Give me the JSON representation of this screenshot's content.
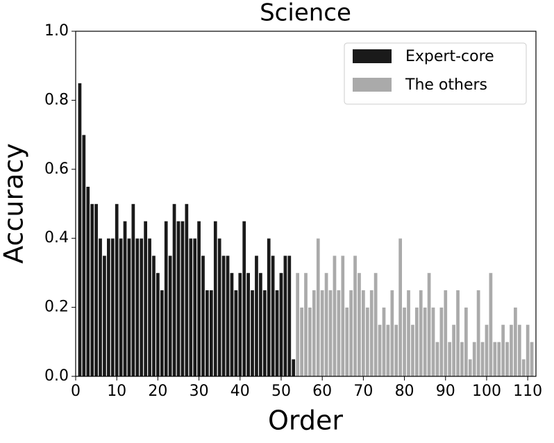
{
  "chart_data": {
    "type": "bar",
    "title": "Science",
    "x_label": "Order",
    "y_label": "Accuracy",
    "series": [
      {
        "name": "Expert-core",
        "color": "#1a1a1a",
        "x": [
          1,
          2,
          3,
          4,
          5,
          6,
          7,
          8,
          9,
          10,
          11,
          12,
          13,
          14,
          15,
          16,
          17,
          18,
          19,
          20,
          21,
          22,
          23,
          24,
          25,
          26,
          27,
          28,
          29,
          30,
          31,
          32,
          33,
          34,
          35,
          36,
          37,
          38,
          39,
          40,
          41,
          42,
          43,
          44,
          45,
          46,
          47,
          48,
          49,
          50,
          51,
          52,
          53
        ],
        "values": [
          0.85,
          0.7,
          0.55,
          0.5,
          0.5,
          0.4,
          0.35,
          0.4,
          0.4,
          0.5,
          0.4,
          0.45,
          0.4,
          0.5,
          0.4,
          0.4,
          0.45,
          0.4,
          0.35,
          0.3,
          0.25,
          0.45,
          0.35,
          0.5,
          0.45,
          0.45,
          0.5,
          0.4,
          0.4,
          0.45,
          0.35,
          0.25,
          0.25,
          0.45,
          0.4,
          0.35,
          0.35,
          0.3,
          0.25,
          0.3,
          0.45,
          0.3,
          0.25,
          0.35,
          0.3,
          0.25,
          0.4,
          0.35,
          0.25,
          0.3,
          0.35,
          0.35,
          0.05
        ]
      },
      {
        "name": "The others",
        "color": "#aaaaaa",
        "x": [
          54,
          55,
          56,
          57,
          58,
          59,
          60,
          61,
          62,
          63,
          64,
          65,
          66,
          67,
          68,
          69,
          70,
          71,
          72,
          73,
          74,
          75,
          76,
          77,
          78,
          79,
          80,
          81,
          82,
          83,
          84,
          85,
          86,
          87,
          88,
          89,
          90,
          91,
          92,
          93,
          94,
          95,
          96,
          97,
          98,
          99,
          100,
          101,
          102,
          103,
          104,
          105,
          106,
          107,
          108,
          109,
          110,
          111
        ],
        "values": [
          0.3,
          0.2,
          0.3,
          0.2,
          0.25,
          0.4,
          0.25,
          0.3,
          0.25,
          0.35,
          0.25,
          0.35,
          0.2,
          0.25,
          0.35,
          0.3,
          0.25,
          0.2,
          0.25,
          0.3,
          0.15,
          0.2,
          0.15,
          0.25,
          0.15,
          0.4,
          0.2,
          0.25,
          0.15,
          0.2,
          0.25,
          0.2,
          0.3,
          0.2,
          0.1,
          0.2,
          0.25,
          0.1,
          0.15,
          0.25,
          0.1,
          0.2,
          0.05,
          0.1,
          0.25,
          0.1,
          0.15,
          0.3,
          0.1,
          0.1,
          0.15,
          0.1,
          0.15,
          0.2,
          0.15,
          0.05,
          0.15,
          0.1
        ]
      }
    ],
    "xlim": [
      0,
      112
    ],
    "xticks": [
      0,
      10,
      20,
      30,
      40,
      50,
      60,
      70,
      80,
      90,
      100,
      110
    ],
    "ylim": [
      0,
      1
    ],
    "yticks": [
      {
        "value": 0,
        "label": "0.0"
      },
      0.2,
      0.4,
      0.6,
      0.8,
      {
        "value": 1,
        "label": "1.0"
      }
    ],
    "legend_loc": "upper right"
  }
}
